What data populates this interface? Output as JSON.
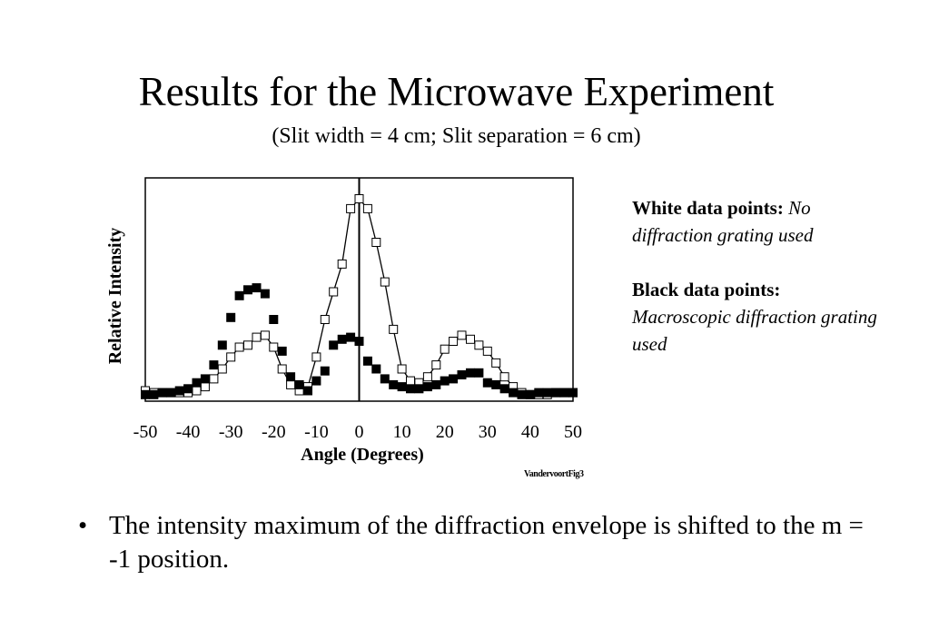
{
  "slide": {
    "title": "Results for the Microwave Experiment",
    "subtitle": "(Slit width = 4 cm; Slit separation = 6 cm)",
    "legend": {
      "white_label": "White data points:",
      "white_desc": "No diffraction grating used",
      "black_label": "Black data points:",
      "black_desc": "Macroscopic diffraction grating used"
    },
    "credit": "VandervoortFig3",
    "bullet_symbol": "•",
    "bullet_text": "The intensity maximum of the diffraction envelope is shifted to the m = -1 position."
  },
  "chart_data": {
    "type": "scatter",
    "title": "",
    "xlabel": "Angle (Degrees)",
    "ylabel": "Relative Intensity",
    "xlim": [
      -50,
      50
    ],
    "ylim": [
      0,
      1.1
    ],
    "xticks": [
      -50,
      -40,
      -30,
      -20,
      -10,
      0,
      10,
      20,
      30,
      40,
      50
    ],
    "grid": false,
    "colors": {
      "white": "#ffffff",
      "black": "#000000",
      "line": "#000000"
    },
    "series": [
      {
        "name": "White data points",
        "marker": "open-square",
        "fit_line": true,
        "x": [
          -50,
          -48,
          -46,
          -44,
          -42,
          -40,
          -38,
          -36,
          -34,
          -32,
          -30,
          -28,
          -26,
          -24,
          -22,
          -20,
          -18,
          -16,
          -14,
          -12,
          -10,
          -8,
          -6,
          -4,
          -2,
          0,
          2,
          4,
          6,
          8,
          10,
          12,
          14,
          16,
          18,
          20,
          22,
          24,
          26,
          28,
          30,
          32,
          34,
          36,
          38,
          40,
          42,
          44,
          46,
          48,
          50
        ],
        "y": [
          0.03,
          0.02,
          0.02,
          0.02,
          0.02,
          0.02,
          0.03,
          0.05,
          0.09,
          0.14,
          0.2,
          0.25,
          0.26,
          0.3,
          0.31,
          0.25,
          0.14,
          0.06,
          0.03,
          0.05,
          0.2,
          0.39,
          0.53,
          0.67,
          0.95,
          1.0,
          0.95,
          0.78,
          0.58,
          0.34,
          0.14,
          0.08,
          0.07,
          0.1,
          0.16,
          0.24,
          0.28,
          0.31,
          0.29,
          0.26,
          0.23,
          0.17,
          0.1,
          0.05,
          0.02,
          0.01,
          0.01,
          0.01,
          0.02,
          0.02,
          0.02
        ]
      },
      {
        "name": "Black data points",
        "marker": "filled-square",
        "fit_line": false,
        "x": [
          -50,
          -48,
          -46,
          -44,
          -42,
          -40,
          -38,
          -36,
          -34,
          -32,
          -30,
          -28,
          -26,
          -24,
          -22,
          -20,
          -18,
          -16,
          -14,
          -12,
          -10,
          -8,
          -6,
          -4,
          -2,
          0,
          2,
          4,
          6,
          8,
          10,
          12,
          14,
          16,
          18,
          20,
          22,
          24,
          26,
          28,
          30,
          32,
          34,
          36,
          38,
          40,
          42,
          44,
          46,
          48,
          50
        ],
        "y": [
          0.01,
          0.01,
          0.02,
          0.02,
          0.03,
          0.04,
          0.07,
          0.09,
          0.16,
          0.26,
          0.4,
          0.51,
          0.54,
          0.55,
          0.52,
          0.39,
          0.23,
          0.1,
          0.06,
          0.03,
          0.08,
          0.13,
          0.26,
          0.29,
          0.3,
          0.28,
          0.18,
          0.14,
          0.09,
          0.06,
          0.05,
          0.04,
          0.04,
          0.05,
          0.06,
          0.08,
          0.09,
          0.11,
          0.12,
          0.12,
          0.07,
          0.06,
          0.04,
          0.02,
          0.01,
          0.01,
          0.02,
          0.02,
          0.02,
          0.02,
          0.02
        ]
      }
    ]
  }
}
